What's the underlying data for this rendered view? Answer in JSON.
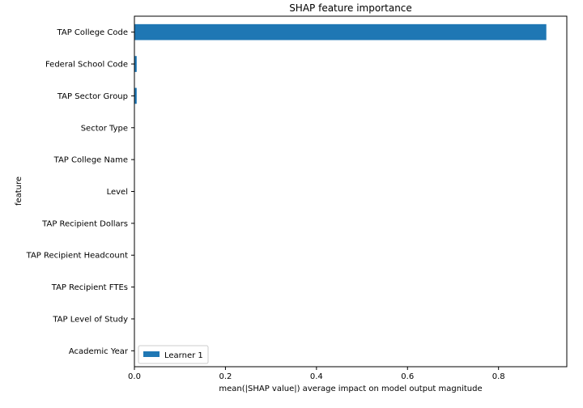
{
  "chart_data": {
    "type": "bar",
    "orientation": "horizontal",
    "title": "SHAP feature importance",
    "xlabel": "mean(|SHAP value|) average impact on model output magnitude",
    "ylabel": "feature",
    "categories": [
      "TAP College Code",
      "Federal School Code",
      "TAP Sector Group",
      "Sector Type",
      "TAP College Name",
      "Level",
      "TAP Recipient Dollars",
      "TAP Recipient Headcount",
      "TAP Recipient FTEs",
      "TAP Level of Study",
      "Academic Year"
    ],
    "series": [
      {
        "name": "Learner 1",
        "color": "#1f77b4",
        "values": [
          0.905,
          0.005,
          0.005,
          0.0005,
          0.0005,
          0.0003,
          0.0002,
          0.0002,
          0.0002,
          0.0001,
          0.0001
        ]
      }
    ],
    "xlim": [
      0,
      0.95
    ],
    "xticks": [
      0,
      0.2,
      0.4,
      0.6,
      0.8
    ],
    "xtick_labels": [
      "0.0",
      "0.2",
      "0.4",
      "0.6",
      "0.8"
    ],
    "grid": false,
    "legend_position": "lower-left"
  }
}
